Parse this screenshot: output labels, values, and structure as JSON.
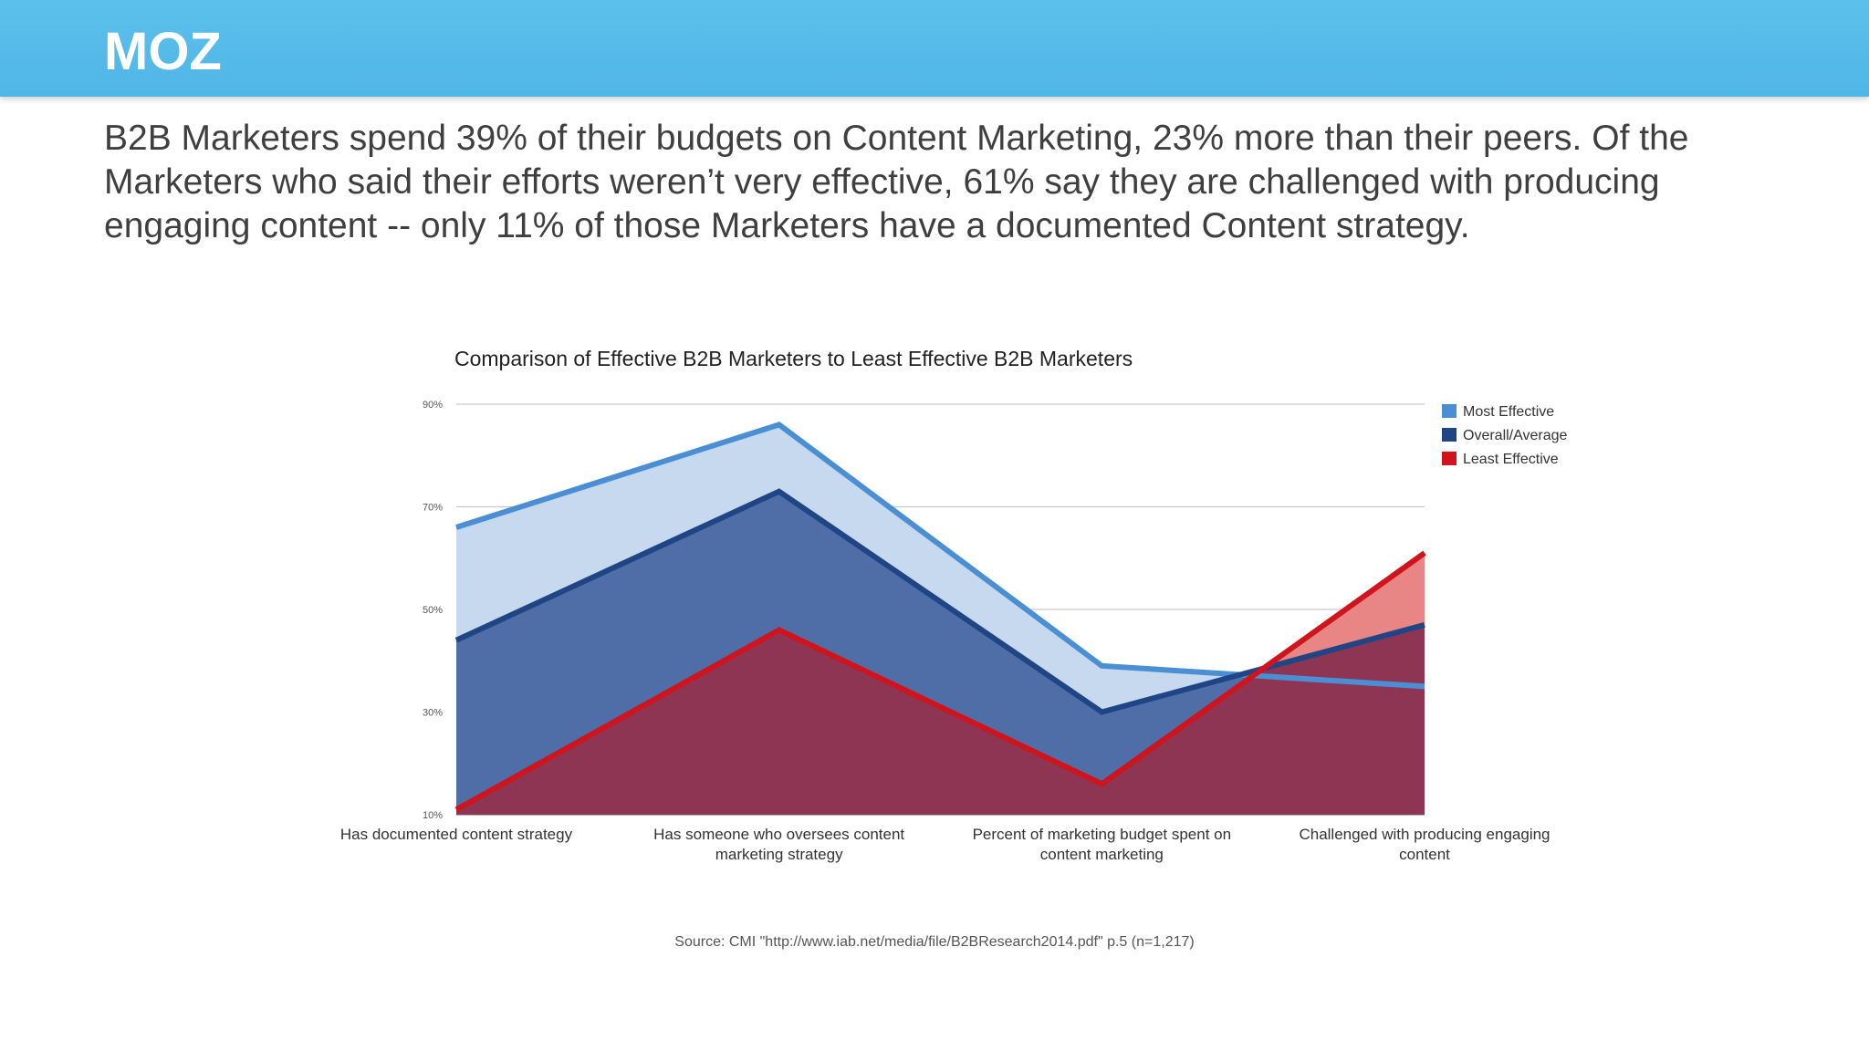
{
  "header": {
    "logo_text": "MOZ"
  },
  "headline": "B2B Marketers spend 39% of their budgets on Content Marketing, 23% more than their peers. Of the Marketers who said their efforts weren’t very effective, 61% say they are challenged with producing engaging content -- only 11% of those Marketers have a documented Content strategy.",
  "source": "Source: CMI \"http://www.iab.net/media/file/B2BResearch2014.pdf\" p.5   (n=1,217)",
  "colors": {
    "header": "#55baea",
    "most_effective": "#4a8fd4",
    "overall_average": "#1f4585",
    "least_effective": "#d0141d"
  },
  "chart_data": {
    "type": "area",
    "title": "Comparison of Effective B2B Marketers to Least Effective B2B Marketers",
    "categories": [
      [
        "Has documented content strategy"
      ],
      [
        "Has someone who oversees content",
        "marketing strategy"
      ],
      [
        "Percent of marketing budget spent on",
        "content marketing"
      ],
      [
        "Challenged with producing engaging",
        "content"
      ]
    ],
    "series": [
      {
        "name": "Most Effective",
        "values": [
          66,
          86,
          39,
          35
        ],
        "color": "#4a8fd4",
        "fill": "#c6d9ee"
      },
      {
        "name": "Overall/Average",
        "values": [
          44,
          73,
          30,
          47
        ],
        "color": "#1f4585",
        "fill": "#4f6ea7"
      },
      {
        "name": "Least Effective",
        "values": [
          11,
          46,
          16,
          61
        ],
        "color": "#d0141d",
        "fill": "#e88585"
      }
    ],
    "overlap_fill": "#8d3552",
    "yticks": [
      "10%",
      "30%",
      "50%",
      "70%",
      "90%"
    ],
    "ylim": [
      10,
      90
    ],
    "grid": true,
    "legend": "right"
  }
}
